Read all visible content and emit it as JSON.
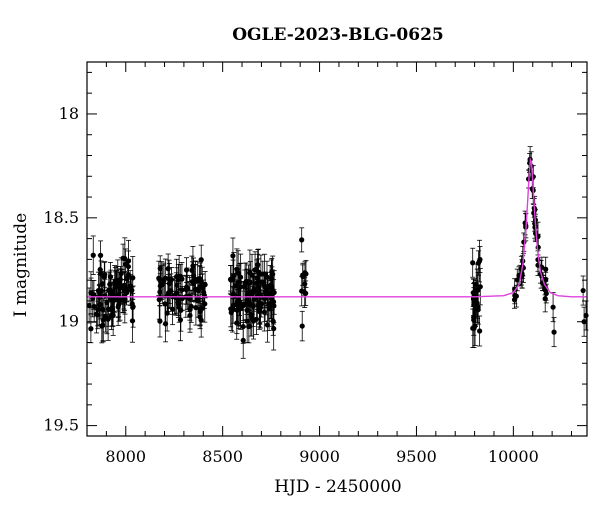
{
  "chart_data": {
    "type": "scatter",
    "title": "OGLE-2023-BLG-0625",
    "xlabel": "HJD - 2450000",
    "ylabel": "I magnitude",
    "xlim": [
      7800,
      10380
    ],
    "ylim": [
      19.55,
      17.75
    ],
    "y_inverted": true,
    "xticks": [
      8000,
      8500,
      9000,
      9500,
      10000
    ],
    "yticks": [
      18,
      18.5,
      19,
      19.5
    ],
    "grid": false,
    "colors": {
      "points": "#000000",
      "model": "#e040e0"
    },
    "baseline_mag": 18.88,
    "model": {
      "x": [
        7800,
        9800,
        9950,
        10000,
        10030,
        10050,
        10065,
        10075,
        10082,
        10088,
        10093,
        10100,
        10110,
        10125,
        10140,
        10160,
        10190,
        10230,
        10300,
        10380
      ],
      "y": [
        18.88,
        18.88,
        18.875,
        18.86,
        18.82,
        18.72,
        18.55,
        18.4,
        18.29,
        18.22,
        18.23,
        18.32,
        18.48,
        18.66,
        18.76,
        18.82,
        18.86,
        18.875,
        18.88,
        18.88
      ]
    },
    "observations": {
      "seasons": [
        {
          "x_start": 7810,
          "x_end": 8040,
          "mag": 18.86,
          "scatter": 0.08,
          "err": 0.08,
          "count": 90
        },
        {
          "x_start": 8170,
          "x_end": 8410,
          "mag": 18.86,
          "scatter": 0.07,
          "err": 0.08,
          "count": 80
        },
        {
          "x_start": 8540,
          "x_end": 8770,
          "mag": 18.88,
          "scatter": 0.08,
          "err": 0.09,
          "count": 110
        },
        {
          "x_start": 8900,
          "x_end": 8930,
          "mag": 18.8,
          "scatter": 0.09,
          "err": 0.06,
          "count": 10
        },
        {
          "x_start": 9790,
          "x_end": 9830,
          "mag": 18.9,
          "scatter": 0.09,
          "err": 0.08,
          "count": 30
        }
      ],
      "event": {
        "x_start": 10000,
        "x_end": 10175,
        "scatter": 0.04,
        "err": 0.06,
        "count": 50
      },
      "late": [
        {
          "x": 10205,
          "y": 18.93
        },
        {
          "x": 10210,
          "y": 19.05
        },
        {
          "x": 10360,
          "y": 18.85
        },
        {
          "x": 10365,
          "y": 19.0
        },
        {
          "x": 10375,
          "y": 18.97
        }
      ]
    }
  }
}
